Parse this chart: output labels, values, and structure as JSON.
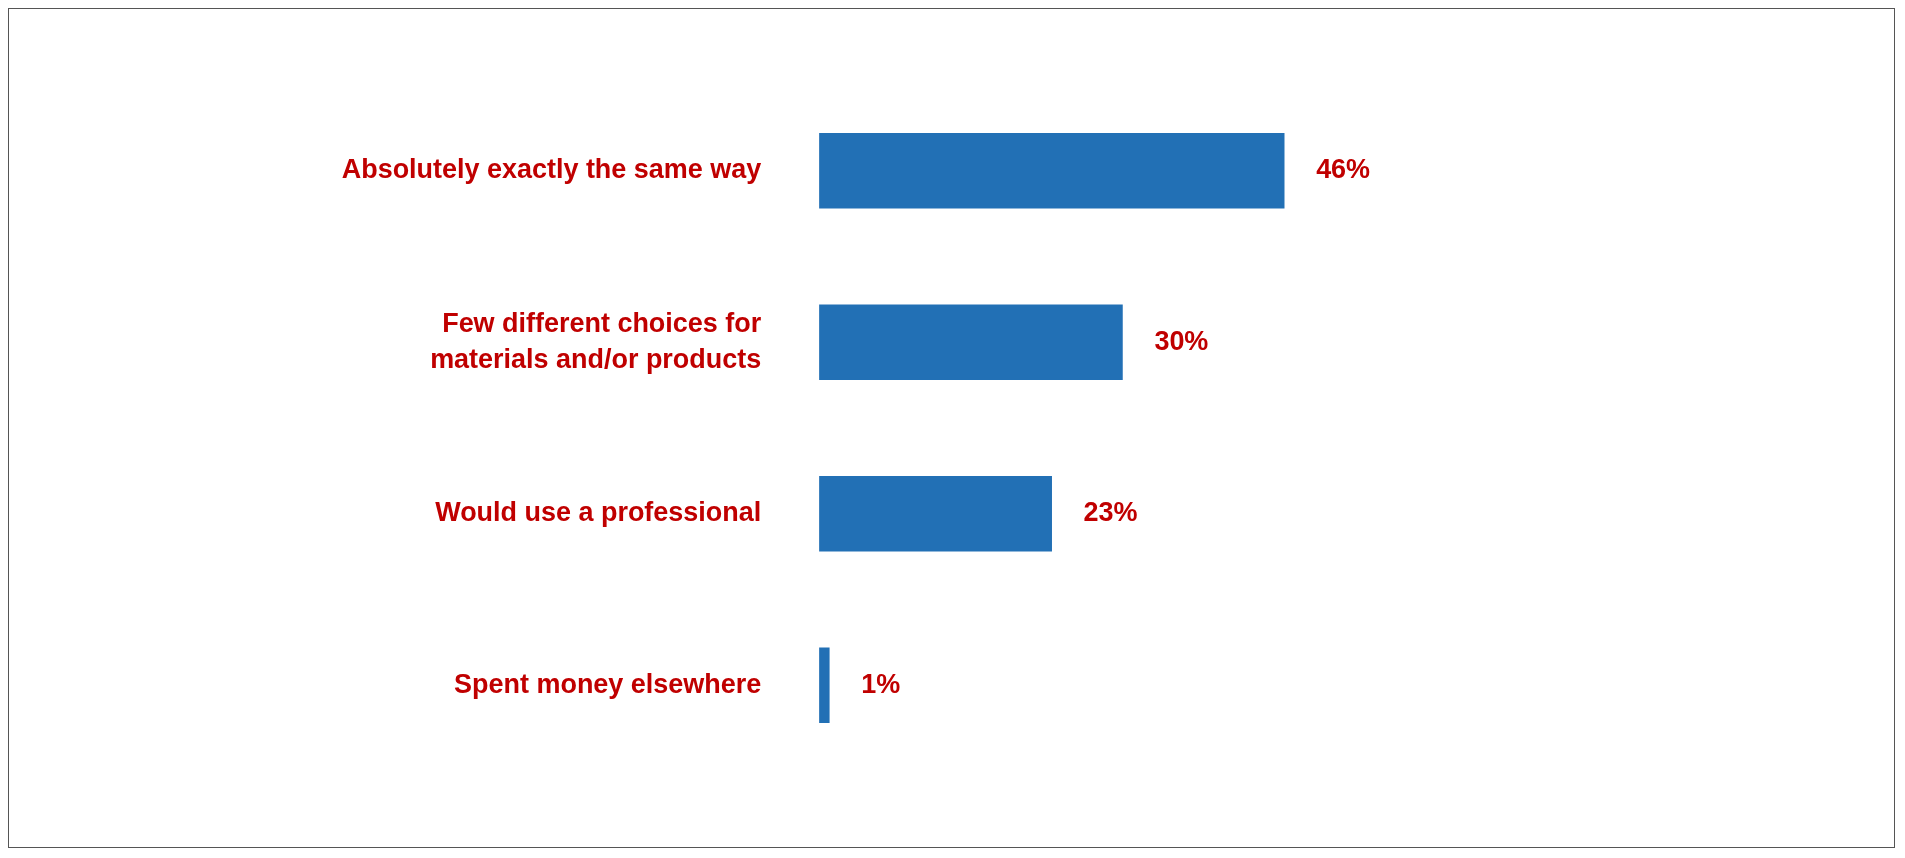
{
  "chart_data": {
    "type": "bar",
    "orientation": "horizontal",
    "categories": [
      "Absolutely exactly the same way",
      "Few different choices for materials and/or products",
      "Would use a professional",
      "Spent money elsewhere"
    ],
    "values": [
      46,
      30,
      23,
      1
    ],
    "value_labels": [
      "46%",
      "30%",
      "23%",
      "1%"
    ],
    "color": "#2270b5",
    "legend": false
  }
}
